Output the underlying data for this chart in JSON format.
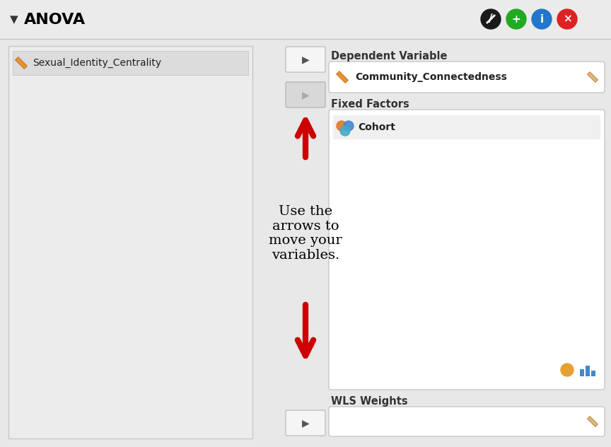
{
  "title": "ANOVA",
  "bg_color": "#e8e8e8",
  "panel_light": "#ececec",
  "white_box": "#ffffff",
  "var1": "Sexual_Identity_Centrality",
  "dep_var_label": "Dependent Variable",
  "dep_var_value": "Community_Connectedness",
  "fixed_factors_label": "Fixed Factors",
  "fixed_factors_value": "Cohort",
  "wls_label": "WLS Weights",
  "annotation_text": "Use the\narrows to\nmove your\nvariables.",
  "arrow_color": "#cc0000",
  "title_fontsize": 16,
  "label_fontsize": 10,
  "var_fontsize": 10,
  "annot_fontsize": 14,
  "icon_pencil_color": "#1a1a1a",
  "icon_plus_color": "#22aa22",
  "icon_info_color": "#2277cc",
  "icon_x_color": "#dd2222",
  "orange_pencil": "#e89030",
  "orange_pencil_light": "#ddb880",
  "cohort_orange": "#e07820",
  "cohort_blue": "#4488cc",
  "cohort_teal": "#44aacc",
  "drop_orange": "#e8a030",
  "bar_blue": "#4488cc"
}
